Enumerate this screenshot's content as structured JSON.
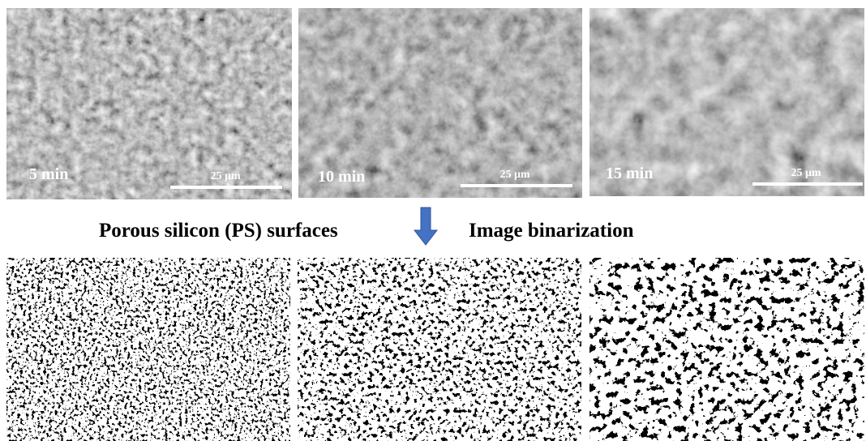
{
  "sem_panels": [
    {
      "time": "5 min",
      "scale_bar": "25 μm"
    },
    {
      "time": "10 min",
      "scale_bar": "25 μm"
    },
    {
      "time": "15 min",
      "scale_bar": "25 μm"
    }
  ],
  "captions": {
    "left": "Porous silicon (PS) surfaces",
    "right": "Image binarization"
  }
}
